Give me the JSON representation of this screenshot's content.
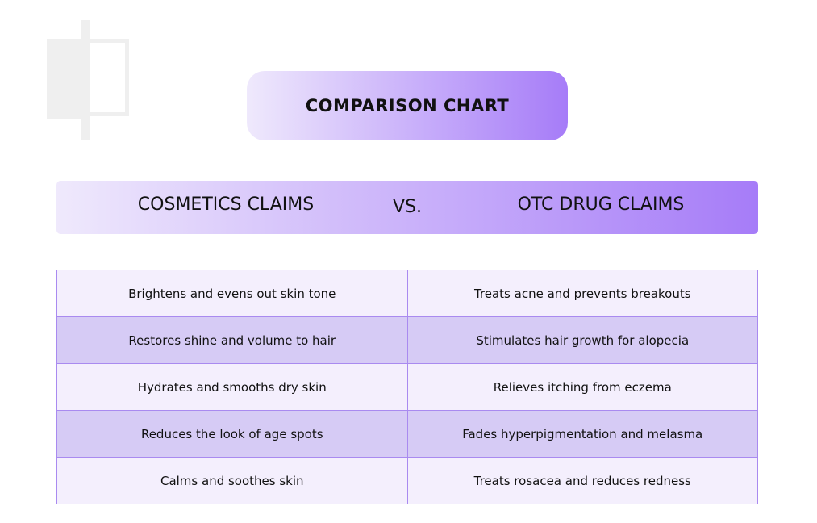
{
  "header": {
    "title": "COMPARISON CHART"
  },
  "columns": {
    "left": "COSMETICS CLAIMS",
    "separator": "VS.",
    "right": "OTC DRUG CLAIMS"
  },
  "table": {
    "rows": [
      [
        "Brightens and evens out skin tone",
        "Treats acne and prevents breakouts"
      ],
      [
        "Restores shine and volume to hair",
        "Stimulates hair growth for alopecia"
      ],
      [
        "Hydrates and smooths dry skin",
        "Relieves itching from eczema"
      ],
      [
        "Reduces the look of age spots",
        "Fades hyperpigmentation and melasma"
      ],
      [
        "Calms and soothes skin",
        "Treats rosacea and reduces redness"
      ]
    ]
  }
}
